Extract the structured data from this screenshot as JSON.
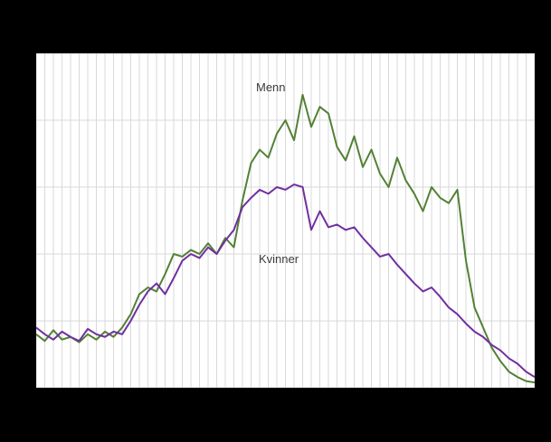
{
  "page": {
    "background_color": "#000000",
    "plot_background_color": "#ffffff",
    "grid_color": "#d9d9d9"
  },
  "chart_data": {
    "type": "line",
    "title": "",
    "xlabel": "",
    "ylabel": "",
    "x_axis_labels_visible": false,
    "y_axis_labels_visible": false,
    "grid": true,
    "ylim": [
      0,
      250
    ],
    "y_gridlines": [
      0,
      50,
      100,
      150,
      200,
      250
    ],
    "x": [
      0,
      1,
      2,
      3,
      4,
      5,
      6,
      7,
      8,
      9,
      10,
      11,
      12,
      13,
      14,
      15,
      16,
      17,
      18,
      19,
      20,
      21,
      22,
      23,
      24,
      25,
      26,
      27,
      28,
      29,
      30,
      31,
      32,
      33,
      34,
      35,
      36,
      37,
      38,
      39,
      40,
      41,
      42,
      43,
      44,
      45,
      46,
      47,
      48,
      49,
      50,
      51,
      52,
      53,
      54,
      55,
      56,
      57,
      58
    ],
    "series": [
      {
        "name": "Menn",
        "color": "#538135",
        "values": [
          40,
          35,
          43,
          36,
          38,
          34,
          40,
          36,
          42,
          38,
          45,
          55,
          70,
          75,
          72,
          85,
          100,
          98,
          103,
          100,
          108,
          100,
          112,
          105,
          140,
          168,
          178,
          172,
          190,
          200,
          185,
          219,
          195,
          210,
          205,
          180,
          170,
          188,
          165,
          178,
          160,
          150,
          172,
          155,
          145,
          132,
          150,
          142,
          138,
          148,
          95,
          60,
          45,
          30,
          20,
          12,
          8,
          5,
          4
        ]
      },
      {
        "name": "Kvinner",
        "color": "#7030a0",
        "values": [
          45,
          40,
          36,
          42,
          38,
          35,
          44,
          40,
          38,
          42,
          40,
          50,
          62,
          72,
          78,
          70,
          82,
          95,
          100,
          97,
          105,
          100,
          110,
          118,
          135,
          142,
          148,
          145,
          150,
          148,
          152,
          150,
          118,
          132,
          120,
          122,
          118,
          120,
          112,
          105,
          98,
          100,
          92,
          85,
          78,
          72,
          75,
          68,
          60,
          55,
          48,
          42,
          38,
          32,
          28,
          22,
          18,
          12,
          8
        ]
      }
    ],
    "annotations": [
      {
        "text": "Menn",
        "x": 243,
        "y": 31
      },
      {
        "text": "Kvinner",
        "x": 246,
        "y": 221
      }
    ],
    "legend_position": "none"
  }
}
